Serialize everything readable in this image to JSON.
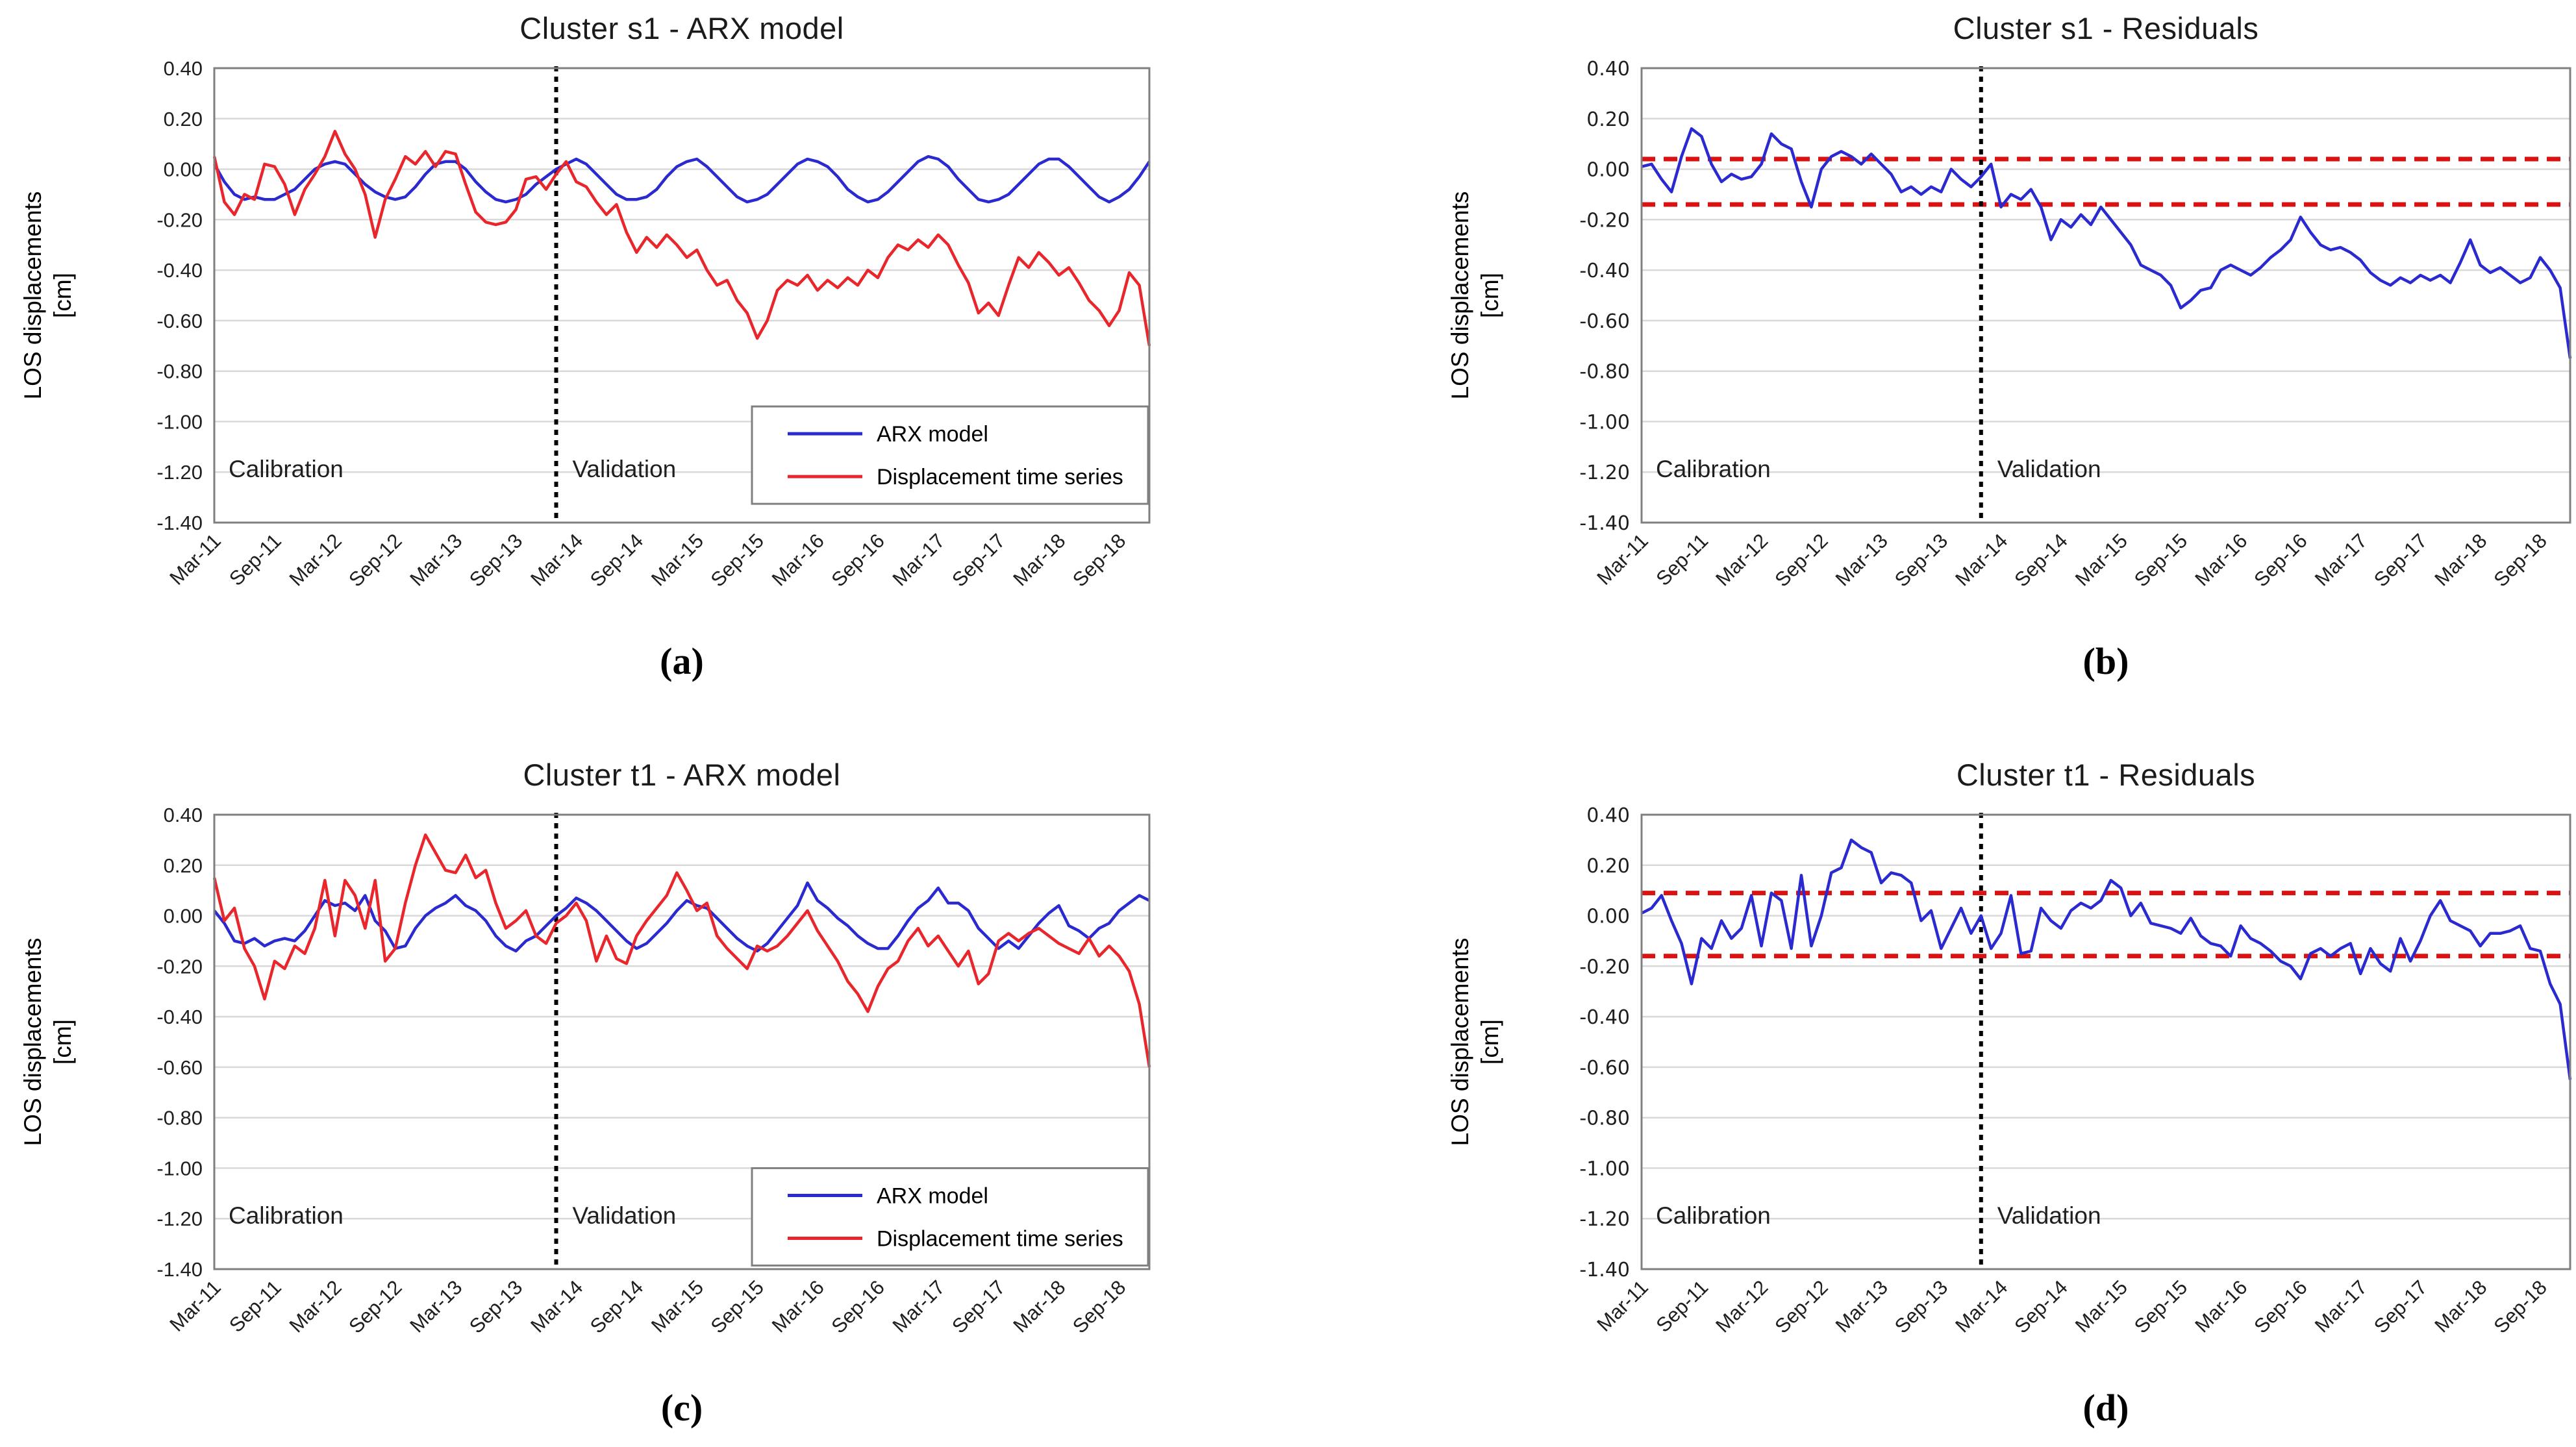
{
  "figure": {
    "background": "#ffffff",
    "text_color": "#1f1f1f",
    "grid_color": "#d9d9d9",
    "border_color": "#7f7f7f",
    "divider_color": "#000000"
  },
  "chart_data": [
    {
      "type": "line",
      "panel_label": "(a)",
      "title": "Cluster s1 - ARX model",
      "ylabel_lines": [
        "LOS displacements",
        "[cm]"
      ],
      "xlabel": "",
      "ylim": [
        -1.4,
        0.4
      ],
      "grid": true,
      "n_points": 94,
      "x_start": "Mar-2011",
      "x_step_months": 1,
      "x_tick_positions": [
        0,
        6,
        12,
        18,
        24,
        30,
        36,
        42,
        48,
        54,
        60,
        66,
        72,
        78,
        84,
        90
      ],
      "x_tick_labels": [
        "Mar-11",
        "Sep-11",
        "Mar-12",
        "Sep-12",
        "Mar-13",
        "Sep-13",
        "Mar-14",
        "Sep-14",
        "Mar-15",
        "Sep-15",
        "Mar-16",
        "Sep-16",
        "Mar-17",
        "Sep-17",
        "Mar-18",
        "Sep-18"
      ],
      "y_tick_values": [
        0.4,
        0.2,
        0.0,
        -0.2,
        -0.4,
        -0.6,
        -0.8,
        -1.0,
        -1.2,
        -1.4
      ],
      "y_tick_labels": [
        "0.40",
        "0.20",
        "0.00",
        "-0.20",
        "-0.40",
        "-0.60",
        "-0.80",
        "-1.00",
        "-1.20",
        "-1.40"
      ],
      "divider_index": 34,
      "annotations": {
        "calibration": "Calibration",
        "validation": "Validation",
        "y_value": -1.22
      },
      "legend": {
        "visible": true,
        "position": "bottom-right",
        "top_value": -0.94
      },
      "thresholds": [],
      "threshold_color": "#da1212",
      "series": [
        {
          "name": "ARX model",
          "color": "#2a2ad0",
          "values": [
            0.02,
            -0.05,
            -0.1,
            -0.12,
            -0.11,
            -0.12,
            -0.12,
            -0.1,
            -0.08,
            -0.04,
            0.0,
            0.02,
            0.03,
            0.02,
            -0.02,
            -0.06,
            -0.09,
            -0.11,
            -0.12,
            -0.11,
            -0.07,
            -0.02,
            0.02,
            0.03,
            0.03,
            0.0,
            -0.05,
            -0.09,
            -0.12,
            -0.13,
            -0.12,
            -0.1,
            -0.06,
            -0.03,
            0.0,
            0.02,
            0.04,
            0.02,
            -0.02,
            -0.06,
            -0.1,
            -0.12,
            -0.12,
            -0.11,
            -0.08,
            -0.03,
            0.01,
            0.03,
            0.04,
            0.01,
            -0.03,
            -0.07,
            -0.11,
            -0.13,
            -0.12,
            -0.1,
            -0.06,
            -0.02,
            0.02,
            0.04,
            0.03,
            0.01,
            -0.03,
            -0.08,
            -0.11,
            -0.13,
            -0.12,
            -0.09,
            -0.05,
            -0.01,
            0.03,
            0.05,
            0.04,
            0.01,
            -0.04,
            -0.08,
            -0.12,
            -0.13,
            -0.12,
            -0.1,
            -0.06,
            -0.02,
            0.02,
            0.04,
            0.04,
            0.01,
            -0.03,
            -0.07,
            -0.11,
            -0.13,
            -0.11,
            -0.08,
            -0.03,
            0.03
          ]
        },
        {
          "name": "Displacement time series",
          "color": "#e8262b",
          "values": [
            0.05,
            -0.13,
            -0.18,
            -0.1,
            -0.12,
            0.02,
            0.01,
            -0.06,
            -0.18,
            -0.08,
            -0.02,
            0.05,
            0.15,
            0.06,
            0.0,
            -0.1,
            -0.27,
            -0.12,
            -0.04,
            0.05,
            0.02,
            0.07,
            0.01,
            0.07,
            0.06,
            -0.06,
            -0.17,
            -0.21,
            -0.22,
            -0.21,
            -0.16,
            -0.04,
            -0.03,
            -0.08,
            -0.02,
            0.03,
            -0.05,
            -0.07,
            -0.13,
            -0.18,
            -0.14,
            -0.25,
            -0.33,
            -0.27,
            -0.31,
            -0.26,
            -0.3,
            -0.35,
            -0.32,
            -0.4,
            -0.46,
            -0.44,
            -0.52,
            -0.57,
            -0.67,
            -0.6,
            -0.48,
            -0.44,
            -0.46,
            -0.42,
            -0.48,
            -0.44,
            -0.47,
            -0.43,
            -0.46,
            -0.4,
            -0.43,
            -0.35,
            -0.3,
            -0.32,
            -0.28,
            -0.31,
            -0.26,
            -0.3,
            -0.38,
            -0.45,
            -0.57,
            -0.53,
            -0.58,
            -0.46,
            -0.35,
            -0.39,
            -0.33,
            -0.37,
            -0.42,
            -0.39,
            -0.45,
            -0.52,
            -0.56,
            -0.62,
            -0.56,
            -0.41,
            -0.46,
            -0.7
          ]
        }
      ]
    },
    {
      "type": "line",
      "panel_label": "(b)",
      "title": "Cluster s1 - Residuals",
      "ylabel_lines": [
        "LOS displacements",
        "[cm]"
      ],
      "xlabel": "",
      "ylim": [
        -1.4,
        0.4
      ],
      "grid": true,
      "n_points": 94,
      "x_start": "Mar-2011",
      "x_step_months": 1,
      "x_tick_positions": [
        0,
        6,
        12,
        18,
        24,
        30,
        36,
        42,
        48,
        54,
        60,
        66,
        72,
        78,
        84,
        90
      ],
      "x_tick_labels": [
        "Mar-11",
        "Sep-11",
        "Mar-12",
        "Sep-12",
        "Mar-13",
        "Sep-13",
        "Mar-14",
        "Sep-14",
        "Mar-15",
        "Sep-15",
        "Mar-16",
        "Sep-16",
        "Mar-17",
        "Sep-17",
        "Mar-18",
        "Sep-18"
      ],
      "y_tick_values": [
        0.4,
        0.2,
        0.0,
        -0.2,
        -0.4,
        -0.6,
        -0.8,
        -1.0,
        -1.2,
        -1.4
      ],
      "y_tick_labels": [
        "0.40",
        "0.20",
        "0.00",
        "-0.20",
        "-0.40",
        "-0.60",
        "-0.80",
        "-1.00",
        "-1.20",
        "-1.40"
      ],
      "divider_index": 34,
      "annotations": {
        "calibration": "Calibration",
        "validation": "Validation",
        "y_value": -1.22
      },
      "legend": {
        "visible": false
      },
      "thresholds": [
        0.04,
        -0.14
      ],
      "threshold_color": "#da1212",
      "series": [
        {
          "name": "Residuals",
          "color": "#2a2ad0",
          "values": [
            0.01,
            0.02,
            -0.04,
            -0.09,
            0.05,
            0.16,
            0.13,
            0.02,
            -0.05,
            -0.02,
            -0.04,
            -0.03,
            0.02,
            0.14,
            0.1,
            0.08,
            -0.05,
            -0.15,
            0.0,
            0.05,
            0.07,
            0.05,
            0.02,
            0.06,
            0.02,
            -0.02,
            -0.09,
            -0.07,
            -0.1,
            -0.07,
            -0.09,
            0.0,
            -0.04,
            -0.07,
            -0.03,
            0.02,
            -0.15,
            -0.1,
            -0.12,
            -0.08,
            -0.15,
            -0.28,
            -0.2,
            -0.23,
            -0.18,
            -0.22,
            -0.15,
            -0.2,
            -0.25,
            -0.3,
            -0.38,
            -0.4,
            -0.42,
            -0.46,
            -0.55,
            -0.52,
            -0.48,
            -0.47,
            -0.4,
            -0.38,
            -0.4,
            -0.42,
            -0.39,
            -0.35,
            -0.32,
            -0.28,
            -0.19,
            -0.25,
            -0.3,
            -0.32,
            -0.31,
            -0.33,
            -0.36,
            -0.41,
            -0.44,
            -0.46,
            -0.43,
            -0.45,
            -0.42,
            -0.44,
            -0.42,
            -0.45,
            -0.37,
            -0.28,
            -0.38,
            -0.41,
            -0.39,
            -0.42,
            -0.45,
            -0.43,
            -0.35,
            -0.4,
            -0.47,
            -0.75
          ]
        }
      ]
    },
    {
      "type": "line",
      "panel_label": "(c)",
      "title": "Cluster t1 - ARX model",
      "ylabel_lines": [
        "LOS displacements",
        "[cm]"
      ],
      "xlabel": "",
      "ylim": [
        -1.4,
        0.4
      ],
      "grid": true,
      "n_points": 94,
      "x_start": "Mar-2011",
      "x_step_months": 1,
      "x_tick_positions": [
        0,
        6,
        12,
        18,
        24,
        30,
        36,
        42,
        48,
        54,
        60,
        66,
        72,
        78,
        84,
        90
      ],
      "x_tick_labels": [
        "Mar-11",
        "Sep-11",
        "Mar-12",
        "Sep-12",
        "Mar-13",
        "Sep-13",
        "Mar-14",
        "Sep-14",
        "Mar-15",
        "Sep-15",
        "Mar-16",
        "Sep-16",
        "Mar-17",
        "Sep-17",
        "Mar-18",
        "Sep-18"
      ],
      "y_tick_values": [
        0.4,
        0.2,
        0.0,
        -0.2,
        -0.4,
        -0.6,
        -0.8,
        -1.0,
        -1.2,
        -1.4
      ],
      "y_tick_labels": [
        "0.40",
        "0.20",
        "0.00",
        "-0.20",
        "-0.40",
        "-0.60",
        "-0.80",
        "-1.00",
        "-1.20",
        "-1.40"
      ],
      "divider_index": 34,
      "annotations": {
        "calibration": "Calibration",
        "validation": "Validation",
        "y_value": -1.22
      },
      "legend": {
        "visible": true,
        "position": "bottom-right",
        "top_value": -1.0
      },
      "thresholds": [],
      "threshold_color": "#da1212",
      "series": [
        {
          "name": "ARX model",
          "color": "#2a2ad0",
          "values": [
            0.02,
            -0.03,
            -0.1,
            -0.11,
            -0.09,
            -0.12,
            -0.1,
            -0.09,
            -0.1,
            -0.06,
            0.0,
            0.06,
            0.04,
            0.05,
            0.02,
            0.08,
            -0.02,
            -0.06,
            -0.13,
            -0.12,
            -0.05,
            0.0,
            0.03,
            0.05,
            0.08,
            0.04,
            0.02,
            -0.02,
            -0.08,
            -0.12,
            -0.14,
            -0.1,
            -0.08,
            -0.04,
            0.0,
            0.03,
            0.07,
            0.05,
            0.02,
            -0.02,
            -0.06,
            -0.1,
            -0.13,
            -0.11,
            -0.07,
            -0.03,
            0.02,
            0.06,
            0.04,
            0.03,
            -0.01,
            -0.05,
            -0.09,
            -0.12,
            -0.14,
            -0.11,
            -0.06,
            -0.01,
            0.04,
            0.13,
            0.06,
            0.03,
            -0.01,
            -0.04,
            -0.08,
            -0.11,
            -0.13,
            -0.13,
            -0.08,
            -0.02,
            0.03,
            0.06,
            0.11,
            0.05,
            0.05,
            0.02,
            -0.05,
            -0.09,
            -0.13,
            -0.1,
            -0.13,
            -0.08,
            -0.03,
            0.01,
            0.04,
            -0.04,
            -0.06,
            -0.09,
            -0.05,
            -0.03,
            0.02,
            0.05,
            0.08,
            0.06
          ]
        },
        {
          "name": "Displacement time series",
          "color": "#e8262b",
          "values": [
            0.15,
            -0.02,
            0.03,
            -0.13,
            -0.2,
            -0.33,
            -0.18,
            -0.21,
            -0.12,
            -0.15,
            -0.05,
            0.14,
            -0.08,
            0.14,
            0.08,
            -0.05,
            0.14,
            -0.18,
            -0.13,
            0.05,
            0.2,
            0.32,
            0.25,
            0.18,
            0.17,
            0.24,
            0.15,
            0.18,
            0.05,
            -0.05,
            -0.02,
            0.02,
            -0.08,
            -0.11,
            -0.03,
            0.0,
            0.05,
            -0.02,
            -0.18,
            -0.08,
            -0.17,
            -0.19,
            -0.08,
            -0.02,
            0.03,
            0.08,
            0.17,
            0.1,
            0.02,
            0.05,
            -0.08,
            -0.13,
            -0.17,
            -0.21,
            -0.12,
            -0.14,
            -0.12,
            -0.08,
            -0.03,
            0.02,
            -0.06,
            -0.12,
            -0.18,
            -0.26,
            -0.31,
            -0.38,
            -0.28,
            -0.21,
            -0.18,
            -0.1,
            -0.05,
            -0.12,
            -0.08,
            -0.14,
            -0.2,
            -0.14,
            -0.27,
            -0.23,
            -0.1,
            -0.07,
            -0.1,
            -0.07,
            -0.05,
            -0.08,
            -0.11,
            -0.13,
            -0.15,
            -0.09,
            -0.16,
            -0.12,
            -0.16,
            -0.22,
            -0.35,
            -0.6
          ]
        }
      ]
    },
    {
      "type": "line",
      "panel_label": "(d)",
      "title": "Cluster t1 - Residuals",
      "ylabel_lines": [
        "LOS displacements",
        "[cm]"
      ],
      "xlabel": "",
      "ylim": [
        -1.4,
        0.4
      ],
      "grid": true,
      "n_points": 94,
      "x_start": "Mar-2011",
      "x_step_months": 1,
      "x_tick_positions": [
        0,
        6,
        12,
        18,
        24,
        30,
        36,
        42,
        48,
        54,
        60,
        66,
        72,
        78,
        84,
        90
      ],
      "x_tick_labels": [
        "Mar-11",
        "Sep-11",
        "Mar-12",
        "Sep-12",
        "Mar-13",
        "Sep-13",
        "Mar-14",
        "Sep-14",
        "Mar-15",
        "Sep-15",
        "Mar-16",
        "Sep-16",
        "Mar-17",
        "Sep-17",
        "Mar-18",
        "Sep-18"
      ],
      "y_tick_values": [
        0.4,
        0.2,
        0.0,
        -0.2,
        -0.4,
        -0.6,
        -0.8,
        -1.0,
        -1.2,
        -1.4
      ],
      "y_tick_labels": [
        "0.40",
        "0.20",
        "0.00",
        "-0.20",
        "-0.40",
        "-0.60",
        "-0.80",
        "-1.00",
        "-1.20",
        "-1.40"
      ],
      "divider_index": 34,
      "annotations": {
        "calibration": "Calibration",
        "validation": "Validation",
        "y_value": -1.22
      },
      "legend": {
        "visible": false
      },
      "thresholds": [
        0.09,
        -0.16
      ],
      "threshold_color": "#da1212",
      "series": [
        {
          "name": "Residuals",
          "color": "#2a2ad0",
          "values": [
            0.01,
            0.03,
            0.08,
            -0.02,
            -0.11,
            -0.27,
            -0.09,
            -0.13,
            -0.02,
            -0.09,
            -0.05,
            0.08,
            -0.12,
            0.09,
            0.06,
            -0.13,
            0.16,
            -0.12,
            0.0,
            0.17,
            0.19,
            0.3,
            0.27,
            0.25,
            0.13,
            0.17,
            0.16,
            0.13,
            -0.02,
            0.02,
            -0.13,
            -0.05,
            0.03,
            -0.07,
            0.0,
            -0.13,
            -0.07,
            0.08,
            -0.15,
            -0.14,
            0.03,
            -0.02,
            -0.05,
            0.02,
            0.05,
            0.03,
            0.06,
            0.14,
            0.11,
            0.0,
            0.05,
            -0.03,
            -0.04,
            -0.05,
            -0.07,
            -0.01,
            -0.08,
            -0.11,
            -0.12,
            -0.16,
            -0.04,
            -0.09,
            -0.11,
            -0.14,
            -0.18,
            -0.2,
            -0.25,
            -0.15,
            -0.13,
            -0.16,
            -0.13,
            -0.11,
            -0.23,
            -0.13,
            -0.19,
            -0.22,
            -0.09,
            -0.18,
            -0.1,
            0.0,
            0.06,
            -0.02,
            -0.04,
            -0.06,
            -0.12,
            -0.07,
            -0.07,
            -0.06,
            -0.04,
            -0.13,
            -0.14,
            -0.27,
            -0.35,
            -0.65
          ]
        }
      ]
    }
  ]
}
